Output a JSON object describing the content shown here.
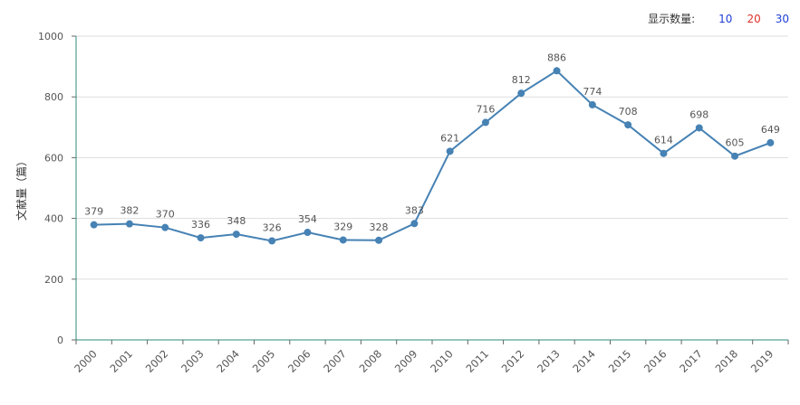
{
  "controls": {
    "label": "显示数量:",
    "options": [
      {
        "text": "10",
        "color": "#1f3fd6"
      },
      {
        "text": "20",
        "color": "#e0322b"
      },
      {
        "text": "30",
        "color": "#1f3fd6"
      }
    ]
  },
  "chart_data": {
    "type": "line",
    "title": "",
    "xlabel": "",
    "ylabel": "文献量（篇）",
    "ylim": [
      0,
      1000
    ],
    "yticks": [
      0,
      200,
      400,
      600,
      800,
      1000
    ],
    "categories": [
      "2000",
      "2001",
      "2002",
      "2003",
      "2004",
      "2005",
      "2006",
      "2007",
      "2008",
      "2009",
      "2010",
      "2011",
      "2012",
      "2013",
      "2014",
      "2015",
      "2016",
      "2017",
      "2018",
      "2019"
    ],
    "series": [
      {
        "values": [
          379,
          382,
          370,
          336,
          348,
          326,
          354,
          329,
          328,
          383,
          621,
          716,
          812,
          886,
          774,
          708,
          614,
          698,
          605,
          649
        ]
      }
    ],
    "grid": true,
    "colors": {
      "line": "#4682b4",
      "axis": "#2e8b7a",
      "grid": "#dddddd"
    }
  }
}
